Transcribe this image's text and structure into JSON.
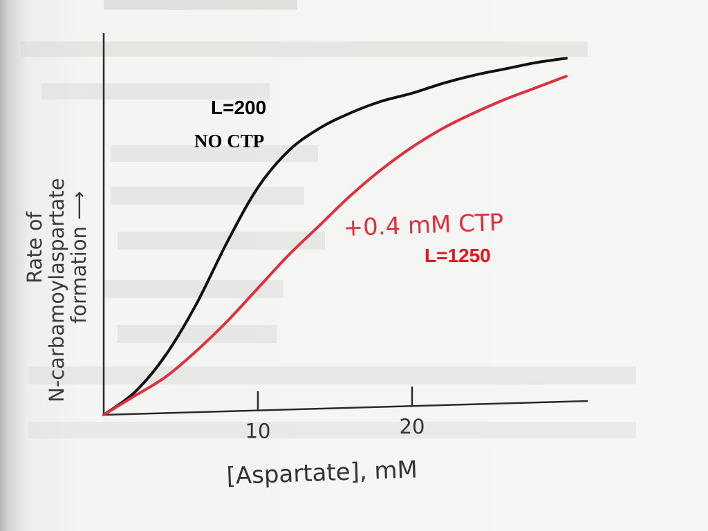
{
  "chart_data": {
    "type": "line",
    "xlabel": "[Aspartate], mM",
    "ylabel": {
      "line1": "Rate of",
      "line2": "N-carbamoylaspartate",
      "line3": "formation ⟶"
    },
    "xticks": [
      10,
      20
    ],
    "xlim": [
      0,
      32
    ],
    "ylim": [
      0,
      1
    ],
    "series": [
      {
        "name": "NO CTP",
        "color": "#111111",
        "x": [
          0,
          2,
          4,
          6,
          8,
          10,
          12,
          14,
          16,
          18,
          20,
          22,
          24,
          26,
          28,
          30
        ],
        "y": [
          0,
          0.06,
          0.16,
          0.3,
          0.47,
          0.62,
          0.72,
          0.78,
          0.82,
          0.85,
          0.87,
          0.895,
          0.915,
          0.93,
          0.945,
          0.955
        ]
      },
      {
        "name": "+0.4 mM CTP",
        "color": "#e0303e",
        "x": [
          0,
          2,
          4,
          6,
          8,
          10,
          12,
          14,
          16,
          18,
          20,
          22,
          24,
          26,
          28,
          30
        ],
        "y": [
          0,
          0.05,
          0.1,
          0.17,
          0.25,
          0.34,
          0.43,
          0.51,
          0.59,
          0.66,
          0.72,
          0.77,
          0.81,
          0.845,
          0.875,
          0.905
        ]
      }
    ],
    "annotations": {
      "black_l": "L=200",
      "black_ctp": "NO CTP",
      "red_ctp": "+0.4 mM CTP",
      "red_l": "L=1250"
    },
    "annotation_colors": {
      "black": "#000000",
      "ctp_pink": "#e0303e",
      "red": "#e8141c"
    }
  }
}
